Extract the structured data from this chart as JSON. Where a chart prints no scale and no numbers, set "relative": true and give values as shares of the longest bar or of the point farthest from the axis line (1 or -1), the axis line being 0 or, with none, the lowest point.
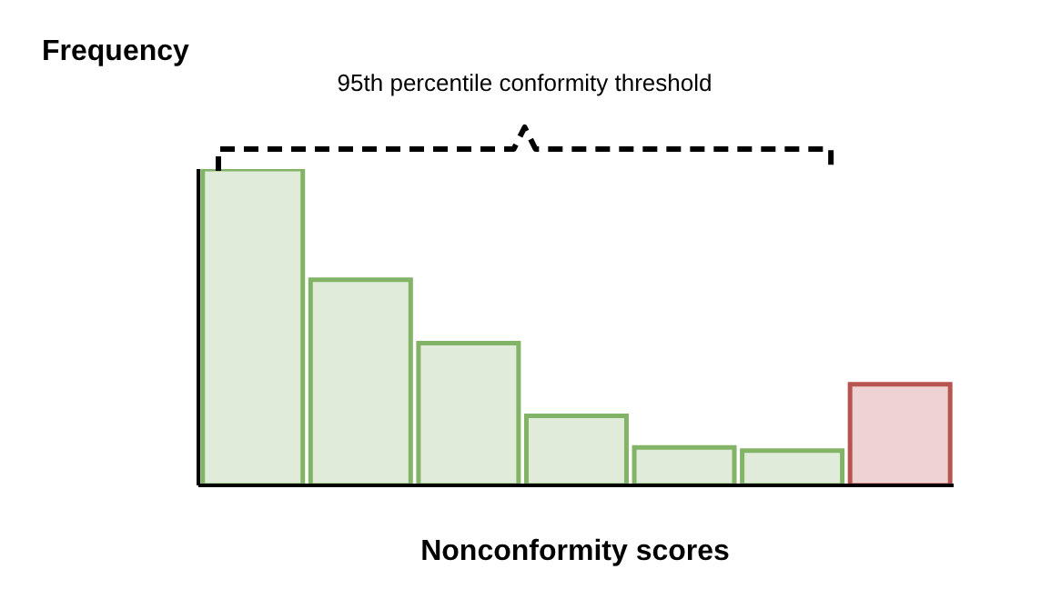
{
  "chart_data": {
    "type": "bar",
    "relative": true,
    "xlabel": "Nonconformity scores",
    "ylabel": "Frequency",
    "categories": [
      null,
      null,
      null,
      null,
      null,
      null,
      null
    ],
    "values": [
      1,
      0.65,
      0.45,
      0.22,
      0.12,
      0.11,
      0.32
    ],
    "colors": [
      "#82b366",
      "#82b366",
      "#82b366",
      "#82b366",
      "#82b366",
      "#82b366",
      "#b85450"
    ],
    "annotations": [
      "95th percentile conformity threshold"
    ],
    "grid": false,
    "legend": false
  }
}
